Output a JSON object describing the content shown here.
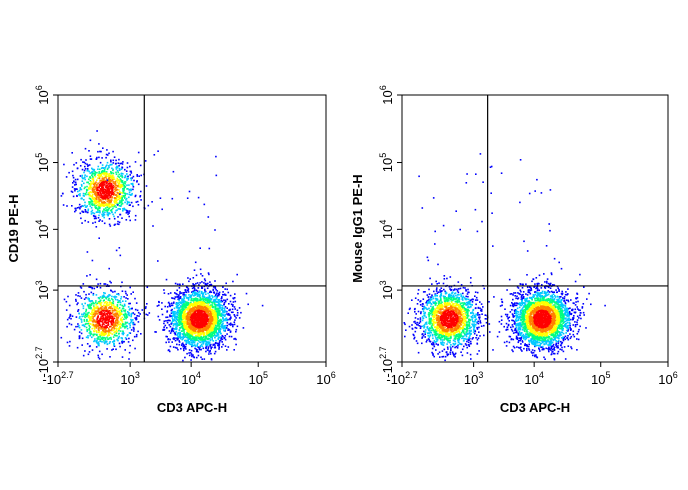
{
  "chart_data": [
    {
      "type": "scatter",
      "subtype": "flow-cytometry-density-dot-plot",
      "title": "",
      "xlabel": "CD3 APC-H",
      "ylabel": "CD19 PE-H",
      "x_scale": "biexponential",
      "y_scale": "biexponential",
      "xlim": [
        -501,
        1000000
      ],
      "ylim": [
        -501,
        1000000
      ],
      "x_ticks": [
        {
          "base": "-10",
          "exp": "2.7",
          "value": -501
        },
        {
          "base": "10",
          "exp": "3",
          "value": 1000
        },
        {
          "base": "10",
          "exp": "4",
          "value": 10000
        },
        {
          "base": "10",
          "exp": "5",
          "value": 100000
        },
        {
          "base": "10",
          "exp": "6",
          "value": 1000000
        }
      ],
      "y_ticks": [
        {
          "base": "-10",
          "exp": "2.7",
          "value": -501
        },
        {
          "base": "10",
          "exp": "3",
          "value": 1000
        },
        {
          "base": "10",
          "exp": "4",
          "value": 10000
        },
        {
          "base": "10",
          "exp": "5",
          "value": 100000
        },
        {
          "base": "10",
          "exp": "6",
          "value": 1000000
        }
      ],
      "quadrant_gate": {
        "x": 1800,
        "y": 1200
      },
      "populations": [
        {
          "name": "",
          "x_center": 250,
          "y_center": 40000,
          "count": 1100
        },
        {
          "name": "",
          "x_center": 250,
          "y_center": 200,
          "count": 1000
        },
        {
          "name": "",
          "x_center": 13000,
          "y_center": 200,
          "count": 2600
        }
      ],
      "grid": false,
      "legend": "none"
    },
    {
      "type": "scatter",
      "subtype": "flow-cytometry-density-dot-plot",
      "title": "",
      "xlabel": "CD3 APC-H",
      "ylabel": "Mouse IgG1 PE-H",
      "x_scale": "biexponential",
      "y_scale": "biexponential",
      "xlim": [
        -501,
        1000000
      ],
      "ylim": [
        -501,
        1000000
      ],
      "x_ticks": [
        {
          "base": "-10",
          "exp": "2.7",
          "value": -501
        },
        {
          "base": "10",
          "exp": "3",
          "value": 1000
        },
        {
          "base": "10",
          "exp": "4",
          "value": 10000
        },
        {
          "base": "10",
          "exp": "5",
          "value": 100000
        },
        {
          "base": "10",
          "exp": "6",
          "value": 1000000
        }
      ],
      "y_ticks": [
        {
          "base": "-10",
          "exp": "2.7",
          "value": -501
        },
        {
          "base": "10",
          "exp": "3",
          "value": 1000
        },
        {
          "base": "10",
          "exp": "4",
          "value": 10000
        },
        {
          "base": "10",
          "exp": "5",
          "value": 100000
        },
        {
          "base": "10",
          "exp": "6",
          "value": 1000000
        }
      ],
      "quadrant_gate": {
        "x": 1800,
        "y": 1200
      },
      "populations": [
        {
          "name": "",
          "x_center": 250,
          "y_center": 200,
          "count": 1700
        },
        {
          "name": "",
          "x_center": 13000,
          "y_center": 200,
          "count": 2600
        }
      ],
      "grid": false,
      "legend": "none"
    }
  ],
  "colors": {
    "density_scale": [
      "#0000ff",
      "#00c8ff",
      "#00ff80",
      "#ffff00",
      "#ff8000",
      "#ff0000"
    ],
    "axes": "#000000",
    "background": "#ffffff"
  }
}
